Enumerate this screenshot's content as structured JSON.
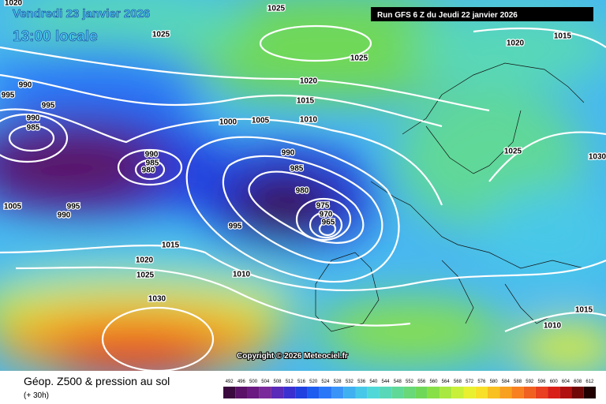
{
  "header": {
    "date": "Vendredi 23 janvier 2026",
    "time": "13:00 locale",
    "run": "Run GFS 6 Z du Jeudi 22 janvier 2026",
    "copyright": "Copyright © 2026 Meteociel.fr"
  },
  "legend": {
    "title": "Géop. Z500 & pression au sol",
    "lead": "(+ 30h)",
    "labels": [
      492,
      496,
      500,
      504,
      508,
      512,
      516,
      520,
      524,
      528,
      532,
      536,
      540,
      544,
      548,
      552,
      556,
      560,
      564,
      568,
      572,
      576,
      580,
      584,
      588,
      592,
      596,
      600,
      604,
      608,
      612
    ],
    "colors": [
      "#3a0a3e",
      "#5a1268",
      "#6a1a80",
      "#7a2a9a",
      "#5a2ab8",
      "#3a30d0",
      "#2040e0",
      "#1e5cf0",
      "#2a78f8",
      "#3a94f8",
      "#40b0f0",
      "#48c8e8",
      "#50d8d8",
      "#58d8b8",
      "#60d898",
      "#68d878",
      "#70d858",
      "#88e048",
      "#a8e840",
      "#c8f038",
      "#e8f030",
      "#f8e028",
      "#f8c020",
      "#f8a020",
      "#f88020",
      "#f06020",
      "#e84020",
      "#d82018",
      "#b01010",
      "#700808",
      "#200000"
    ]
  },
  "isobars": [
    1020,
    1025,
    1025,
    1025,
    1020,
    1015,
    1020,
    1015,
    1010,
    1005,
    1000,
    990,
    995,
    995,
    990,
    985,
    990,
    985,
    980,
    990,
    985,
    980,
    975,
    970,
    965,
    1005,
    995,
    990,
    995,
    1015,
    1010,
    1020,
    1025,
    1030,
    1025,
    1030,
    1010,
    1015
  ]
}
